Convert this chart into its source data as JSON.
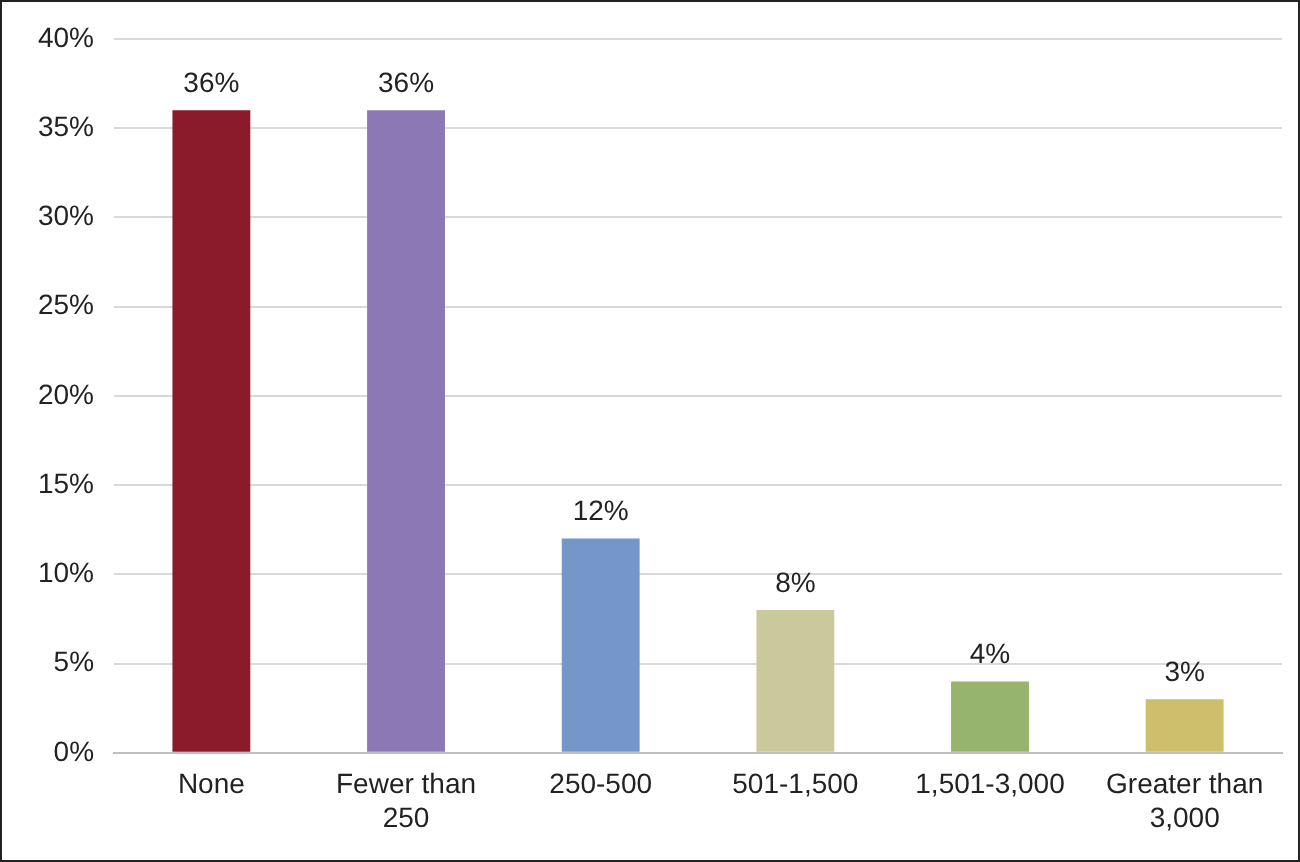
{
  "chart_data": {
    "type": "bar",
    "categories": [
      "None",
      "Fewer than 250",
      "250-500",
      "501-1,500",
      "1,501-3,000",
      "Greater than 3,000"
    ],
    "values": [
      36,
      36,
      12,
      8,
      4,
      3
    ],
    "colors": [
      "#8b1a2b",
      "#8b78b5",
      "#7596c9",
      "#c9c99c",
      "#97b46e",
      "#cdbf6b"
    ],
    "value_labels": [
      "36%",
      "36%",
      "12%",
      "8%",
      "4%",
      "3%"
    ],
    "ylim": [
      0,
      40
    ],
    "yticks": [
      {
        "value": 0,
        "label": "0%"
      },
      {
        "value": 5,
        "label": "5%"
      },
      {
        "value": 10,
        "label": "10%"
      },
      {
        "value": 15,
        "label": "15%"
      },
      {
        "value": 20,
        "label": "20%"
      },
      {
        "value": 25,
        "label": "25%"
      },
      {
        "value": 30,
        "label": "30%"
      },
      {
        "value": 35,
        "label": "35%"
      },
      {
        "value": 40,
        "label": "40%"
      }
    ],
    "grid": "y",
    "legend": false
  }
}
